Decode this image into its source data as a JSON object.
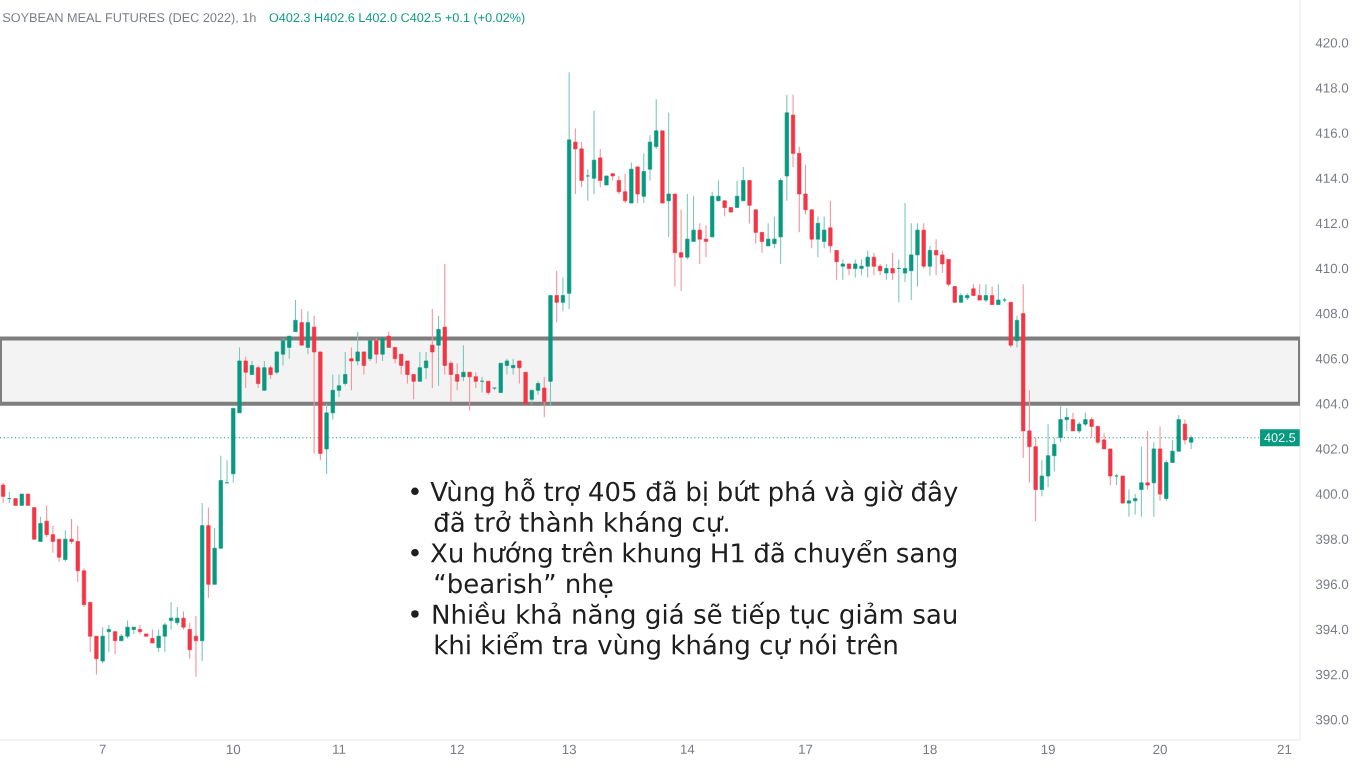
{
  "chart_data": {
    "type": "candlestick",
    "title": "SOYBEAN MEAL FUTURES (DEC 2022), 1h",
    "subtitle": "O402.3 H402.6 L402.0 C402.5 +0.1 (+0.02%)",
    "annotations": [
      "• Vùng hỗ trợ 405 đã bị bứt phá và giờ đây đã trở thành kháng cự.",
      "• Xu hướng trên khung H1 đã chuyển sang “bearish” nhẹ",
      "• Nhiều khả năng giá sẽ tiếp tục giảm sau khi kiểm tra vùng kháng cự nói trên"
    ],
    "categories": [
      null,
      null,
      null,
      null,
      null,
      null,
      null,
      null,
      null,
      null,
      null,
      null,
      null,
      null,
      null,
      null,
      "7",
      null,
      null,
      null,
      null,
      null,
      null,
      null,
      null,
      null,
      null,
      null,
      null,
      null,
      null,
      null,
      null,
      null,
      null,
      null,
      null,
      "10",
      null,
      null,
      null,
      null,
      null,
      null,
      null,
      null,
      null,
      null,
      null,
      null,
      null,
      null,
      null,
      null,
      "11",
      null,
      null,
      null,
      null,
      null,
      null,
      null,
      null,
      null,
      null,
      null,
      null,
      null,
      null,
      null,
      null,
      null,
      null,
      "12",
      null,
      null,
      null,
      null,
      null,
      null,
      null,
      null,
      null,
      null,
      null,
      null,
      null,
      null,
      null,
      null,
      null,
      "13",
      null,
      null,
      null,
      null,
      null,
      null,
      null,
      null,
      null,
      null,
      null,
      null,
      null,
      null,
      null,
      null,
      null,
      null,
      "14",
      null,
      null,
      null,
      null,
      null,
      null,
      null,
      null,
      null,
      null,
      null,
      null,
      null,
      null,
      null,
      null,
      null,
      null,
      "17",
      null,
      null,
      null,
      null,
      null,
      null,
      null,
      null,
      null,
      null,
      null,
      null,
      null,
      null,
      null,
      null,
      null,
      null,
      null,
      "18",
      null,
      null,
      null,
      null,
      null,
      null,
      null,
      null,
      null,
      null,
      null,
      null,
      null,
      null,
      null,
      null,
      null,
      null,
      "19",
      null,
      null,
      null,
      null,
      null,
      null,
      null,
      null,
      null,
      null,
      null,
      null,
      null,
      null,
      null,
      null,
      null,
      "20",
      null,
      null,
      null,
      null,
      null,
      null,
      null,
      null,
      null,
      null,
      null,
      null,
      null,
      null,
      null,
      null,
      null,
      null,
      null,
      "21",
      null,
      null
    ],
    "ohlc": [
      [
        400.4,
        400.5,
        399.6,
        399.9
      ],
      [
        399.8,
        400.1,
        399.6,
        399.8
      ],
      [
        399.8,
        399.8,
        399.5,
        399.5
      ],
      [
        399.5,
        400.0,
        399.5,
        400.0
      ],
      [
        400.0,
        400.0,
        399.5,
        399.5
      ],
      [
        399.4,
        399.4,
        398.0,
        398.0
      ],
      [
        397.9,
        399.0,
        397.9,
        398.7
      ],
      [
        398.8,
        399.5,
        398.1,
        398.2
      ],
      [
        398.2,
        398.6,
        397.4,
        397.9
      ],
      [
        398.0,
        398.0,
        397.0,
        397.2
      ],
      [
        397.1,
        398.4,
        397.0,
        398.0
      ],
      [
        398.0,
        398.9,
        397.8,
        397.9
      ],
      [
        397.9,
        398.6,
        396.1,
        396.6
      ],
      [
        396.6,
        396.7,
        395.0,
        395.1
      ],
      [
        395.2,
        395.2,
        393.0,
        393.7
      ],
      [
        393.7,
        393.7,
        392.0,
        392.7
      ],
      [
        392.6,
        394.1,
        392.5,
        393.7
      ],
      [
        393.9,
        394.2,
        393.0,
        394.0
      ],
      [
        393.9,
        393.9,
        392.9,
        393.5
      ],
      [
        393.5,
        393.8,
        393.5,
        393.7
      ],
      [
        393.7,
        394.4,
        393.6,
        394.1
      ],
      [
        394.0,
        394.1,
        393.8,
        394.1
      ],
      [
        394.0,
        394.2,
        393.8,
        393.9
      ],
      [
        393.8,
        393.8,
        393.7,
        393.7
      ],
      [
        393.6,
        394.0,
        393.4,
        393.4
      ],
      [
        393.2,
        394.0,
        393.0,
        393.7
      ],
      [
        393.7,
        394.3,
        393.0,
        394.2
      ],
      [
        394.4,
        395.2,
        394.0,
        394.5
      ],
      [
        394.3,
        395.0,
        394.2,
        394.5
      ],
      [
        394.5,
        394.8,
        394.0,
        394.1
      ],
      [
        394.0,
        394.3,
        392.7,
        393.1
      ],
      [
        393.7,
        394.6,
        391.9,
        393.5
      ],
      [
        393.5,
        399.6,
        392.6,
        398.6
      ],
      [
        398.6,
        399.4,
        395.4,
        396.0
      ],
      [
        396.0,
        398.5,
        396.0,
        397.6
      ],
      [
        397.6,
        401.7,
        397.6,
        400.6
      ],
      [
        400.5,
        401.5,
        400.5,
        400.5
      ],
      [
        400.9,
        403.8,
        400.5,
        403.8
      ],
      [
        403.6,
        406.5,
        403.6,
        405.9
      ],
      [
        405.9,
        406.1,
        404.7,
        405.4
      ],
      [
        405.3,
        405.9,
        405.3,
        405.7
      ],
      [
        405.6,
        405.7,
        404.7,
        404.9
      ],
      [
        404.6,
        405.9,
        404.6,
        405.6
      ],
      [
        405.6,
        405.7,
        405.1,
        405.3
      ],
      [
        405.4,
        406.3,
        405.3,
        406.3
      ],
      [
        406.2,
        406.9,
        405.7,
        406.8
      ],
      [
        406.5,
        407.0,
        406.0,
        407.0
      ],
      [
        407.2,
        408.6,
        407.2,
        407.7
      ],
      [
        407.6,
        408.2,
        406.6,
        406.6
      ],
      [
        406.5,
        408.1,
        406.2,
        407.6
      ],
      [
        407.4,
        407.9,
        401.8,
        406.3
      ],
      [
        406.3,
        406.3,
        401.5,
        401.8
      ],
      [
        402.0,
        404.0,
        400.9,
        403.6
      ],
      [
        403.6,
        405.3,
        403.3,
        404.6
      ],
      [
        404.6,
        405.3,
        404.3,
        404.8
      ],
      [
        404.9,
        406.3,
        404.8,
        405.3
      ],
      [
        406.0,
        406.5,
        404.6,
        405.9
      ],
      [
        405.9,
        407.2,
        405.7,
        406.3
      ],
      [
        406.3,
        406.3,
        405.3,
        405.7
      ],
      [
        406.0,
        406.8,
        405.9,
        406.8
      ],
      [
        406.8,
        406.9,
        405.8,
        406.2
      ],
      [
        406.2,
        406.9,
        405.9,
        406.9
      ],
      [
        407.0,
        407.2,
        406.5,
        406.5
      ],
      [
        406.5,
        406.5,
        405.8,
        406.0
      ],
      [
        406.2,
        406.2,
        405.3,
        405.7
      ],
      [
        405.9,
        405.9,
        404.9,
        405.3
      ],
      [
        405.3,
        405.3,
        404.2,
        405.0
      ],
      [
        405.0,
        406.3,
        405.0,
        405.6
      ],
      [
        405.6,
        406.3,
        405.1,
        405.9
      ],
      [
        406.6,
        408.2,
        404.7,
        406.3
      ],
      [
        406.6,
        407.9,
        404.8,
        407.3
      ],
      [
        407.4,
        410.2,
        405.3,
        405.7
      ],
      [
        405.8,
        405.9,
        404.1,
        405.3
      ],
      [
        405.3,
        405.8,
        404.6,
        405.0
      ],
      [
        405.2,
        406.6,
        405.0,
        405.4
      ],
      [
        405.4,
        405.4,
        403.7,
        405.2
      ],
      [
        405.2,
        405.4,
        404.7,
        405.0
      ],
      [
        405.0,
        405.2,
        404.5,
        405.0
      ],
      [
        405.0,
        405.0,
        404.4,
        404.5
      ],
      [
        404.7,
        404.7,
        404.6,
        404.7
      ],
      [
        404.5,
        405.8,
        404.5,
        405.8
      ],
      [
        405.7,
        406.0,
        405.3,
        405.9
      ],
      [
        405.6,
        406.0,
        405.3,
        405.7
      ],
      [
        405.9,
        405.9,
        404.9,
        405.6
      ],
      [
        405.4,
        405.4,
        404.0,
        404.0
      ],
      [
        404.2,
        404.6,
        404.0,
        404.6
      ],
      [
        404.6,
        405.0,
        404.4,
        404.9
      ],
      [
        404.7,
        405.2,
        403.4,
        404.1
      ],
      [
        405.0,
        408.8,
        403.9,
        408.8
      ],
      [
        408.8,
        409.9,
        407.6,
        408.5
      ],
      [
        408.5,
        409.6,
        408.1,
        408.8
      ],
      [
        408.9,
        418.7,
        408.2,
        415.7
      ],
      [
        415.6,
        416.2,
        413.3,
        415.3
      ],
      [
        415.3,
        415.6,
        413.6,
        413.9
      ],
      [
        414.1,
        414.4,
        413.0,
        414.1
      ],
      [
        414.0,
        417.0,
        413.3,
        414.8
      ],
      [
        414.9,
        415.3,
        413.6,
        413.9
      ],
      [
        413.7,
        414.1,
        413.7,
        414.1
      ],
      [
        414.2,
        414.2,
        413.9,
        414.1
      ],
      [
        413.9,
        414.1,
        413.3,
        413.4
      ],
      [
        413.4,
        414.2,
        412.9,
        413.0
      ],
      [
        412.9,
        414.7,
        412.9,
        414.4
      ],
      [
        414.5,
        414.5,
        412.9,
        413.3
      ],
      [
        413.2,
        415.1,
        412.9,
        414.3
      ],
      [
        414.4,
        415.9,
        413.9,
        415.6
      ],
      [
        415.4,
        417.5,
        415.3,
        416.1
      ],
      [
        416.1,
        416.1,
        412.9,
        412.9
      ],
      [
        413.0,
        416.9,
        411.4,
        413.3
      ],
      [
        413.3,
        413.3,
        409.2,
        410.7
      ],
      [
        410.7,
        412.6,
        409.0,
        410.5
      ],
      [
        410.5,
        413.3,
        410.4,
        411.3
      ],
      [
        411.2,
        413.2,
        411.2,
        411.7
      ],
      [
        411.7,
        412.0,
        410.2,
        411.3
      ],
      [
        411.3,
        411.9,
        410.5,
        411.2
      ],
      [
        411.4,
        413.4,
        411.4,
        413.2
      ],
      [
        413.0,
        413.9,
        413.0,
        413.2
      ],
      [
        413.0,
        413.0,
        412.3,
        412.7
      ],
      [
        412.7,
        412.7,
        412.5,
        412.5
      ],
      [
        412.7,
        413.9,
        412.7,
        413.2
      ],
      [
        413.0,
        414.5,
        413.0,
        413.9
      ],
      [
        413.9,
        413.9,
        412.0,
        412.8
      ],
      [
        412.6,
        412.6,
        411.1,
        411.6
      ],
      [
        411.6,
        411.6,
        410.7,
        411.2
      ],
      [
        411.0,
        412.0,
        411.0,
        411.3
      ],
      [
        411.1,
        412.3,
        410.9,
        411.3
      ],
      [
        411.4,
        414.0,
        410.2,
        413.9
      ],
      [
        414.1,
        417.7,
        413.0,
        416.9
      ],
      [
        416.8,
        417.7,
        414.5,
        415.1
      ],
      [
        415.1,
        415.4,
        411.6,
        413.3
      ],
      [
        413.3,
        414.6,
        412.4,
        412.6
      ],
      [
        412.6,
        412.6,
        410.9,
        411.3
      ],
      [
        411.3,
        412.3,
        410.5,
        412.0
      ],
      [
        411.2,
        412.3,
        410.9,
        411.7
      ],
      [
        411.8,
        413.0,
        410.7,
        411.0
      ],
      [
        410.8,
        410.8,
        409.5,
        410.3
      ],
      [
        410.1,
        410.4,
        409.5,
        410.2
      ],
      [
        410.2,
        410.2,
        409.7,
        410.0
      ],
      [
        410.0,
        410.4,
        409.6,
        410.2
      ],
      [
        410.0,
        410.4,
        409.7,
        410.1
      ],
      [
        410.1,
        410.8,
        409.6,
        410.5
      ],
      [
        410.5,
        410.7,
        409.7,
        410.1
      ],
      [
        410.1,
        410.2,
        409.7,
        409.9
      ],
      [
        409.8,
        410.2,
        409.5,
        410.0
      ],
      [
        410.0,
        410.7,
        409.5,
        409.8
      ],
      [
        410.0,
        410.4,
        408.5,
        410.0
      ],
      [
        409.8,
        412.9,
        409.4,
        410.0
      ],
      [
        409.9,
        412.0,
        408.6,
        410.6
      ],
      [
        410.6,
        412.0,
        409.2,
        411.7
      ],
      [
        411.7,
        412.0,
        410.0,
        410.1
      ],
      [
        410.1,
        411.0,
        409.7,
        410.8
      ],
      [
        410.8,
        411.3,
        409.7,
        410.6
      ],
      [
        410.6,
        410.8,
        409.8,
        410.2
      ],
      [
        410.4,
        410.4,
        409.2,
        409.3
      ],
      [
        409.2,
        409.2,
        408.5,
        408.5
      ],
      [
        408.5,
        408.9,
        408.5,
        408.8
      ],
      [
        408.7,
        408.9,
        408.6,
        408.8
      ],
      [
        409.1,
        409.3,
        408.8,
        408.8
      ],
      [
        408.8,
        409.3,
        408.6,
        408.6
      ],
      [
        408.6,
        409.3,
        408.5,
        408.8
      ],
      [
        408.8,
        409.2,
        408.4,
        408.4
      ],
      [
        408.4,
        409.3,
        408.4,
        408.6
      ],
      [
        408.6,
        408.7,
        408.5,
        408.6
      ],
      [
        408.5,
        408.5,
        406.5,
        406.6
      ],
      [
        406.8,
        407.9,
        406.5,
        407.7
      ],
      [
        408.0,
        409.3,
        401.6,
        402.8
      ],
      [
        402.8,
        404.6,
        400.5,
        402.1
      ],
      [
        402.1,
        402.5,
        398.8,
        400.2
      ],
      [
        400.2,
        401.5,
        399.9,
        400.8
      ],
      [
        400.8,
        403.1,
        400.3,
        401.7
      ],
      [
        401.7,
        402.5,
        401.0,
        402.2
      ],
      [
        402.5,
        403.9,
        402.3,
        403.3
      ],
      [
        403.3,
        403.8,
        402.8,
        403.4
      ],
      [
        403.3,
        403.6,
        402.8,
        402.8
      ],
      [
        402.8,
        403.2,
        402.7,
        403.1
      ],
      [
        403.1,
        403.6,
        403.0,
        403.3
      ],
      [
        403.3,
        403.4,
        402.5,
        403.0
      ],
      [
        403.0,
        403.0,
        402.2,
        402.3
      ],
      [
        402.4,
        402.7,
        402.0,
        402.0
      ],
      [
        402.0,
        402.0,
        400.4,
        400.8
      ],
      [
        400.8,
        400.9,
        400.4,
        400.8
      ],
      [
        400.8,
        400.8,
        399.6,
        399.6
      ],
      [
        399.6,
        400.2,
        399.0,
        399.7
      ],
      [
        399.7,
        400.0,
        399.1,
        399.8
      ],
      [
        400.2,
        402.1,
        399.0,
        400.5
      ],
      [
        400.5,
        402.8,
        400.2,
        400.4
      ],
      [
        400.5,
        402.3,
        399.0,
        402.0
      ],
      [
        402.0,
        403.0,
        399.7,
        400.0
      ],
      [
        399.8,
        401.5,
        399.7,
        401.4
      ],
      [
        401.4,
        402.4,
        401.4,
        401.9
      ],
      [
        401.9,
        403.5,
        401.9,
        403.3
      ],
      [
        403.1,
        403.3,
        402.2,
        402.4
      ],
      [
        402.3,
        402.6,
        402.0,
        402.5
      ],
      null,
      null,
      null,
      null,
      null,
      null,
      null,
      null,
      null,
      null,
      null,
      null,
      null,
      null,
      null,
      null,
      null
    ],
    "colors": [
      "#f23645",
      "#089981",
      "#f23645",
      "#089981",
      "#f23645",
      "#f23645",
      "#089981",
      "#f23645",
      "#f23645",
      "#f23645",
      "#089981",
      "#f23645",
      "#f23645",
      "#f23645",
      "#f23645",
      "#f23645",
      "#089981",
      "#089981",
      "#f23645",
      "#089981",
      "#089981",
      "#089981",
      "#f23645",
      "#f23645",
      "#f23645",
      "#089981",
      "#089981",
      "#089981",
      "#089981",
      "#f23645",
      "#f23645",
      "#f23645",
      "#089981",
      "#f23645",
      "#089981",
      "#089981",
      "#089981",
      "#089981",
      "#089981",
      "#f23645",
      "#089981",
      "#f23645",
      "#089981",
      "#f23645",
      "#089981",
      "#089981",
      "#089981",
      "#089981",
      "#f23645",
      "#089981",
      "#f23645",
      "#f23645",
      "#089981",
      "#089981",
      "#089981",
      "#089981",
      "#f23645",
      "#089981",
      "#f23645",
      "#089981",
      "#f23645",
      "#089981",
      "#f23645",
      "#f23645",
      "#f23645",
      "#f23645",
      "#f23645",
      "#089981",
      "#089981",
      "#f23645",
      "#089981",
      "#f23645",
      "#f23645",
      "#f23645",
      "#089981",
      "#f23645",
      "#f23645",
      "#089981",
      "#f23645",
      "#089981",
      "#089981",
      "#089981",
      "#089981",
      "#f23645",
      "#f23645",
      "#089981",
      "#089981",
      "#f23645",
      "#089981",
      "#f23645",
      "#089981",
      "#089981",
      "#f23645",
      "#f23645",
      "#089981",
      "#089981",
      "#f23645",
      "#089981",
      "#f23645",
      "#f23645",
      "#f23645",
      "#089981",
      "#f23645",
      "#089981",
      "#089981",
      "#089981",
      "#f23645",
      "#089981",
      "#f23645",
      "#f23645",
      "#089981",
      "#089981",
      "#f23645",
      "#f23645",
      "#089981",
      "#089981",
      "#f23645",
      "#f23645",
      "#089981",
      "#089981",
      "#f23645",
      "#f23645",
      "#f23645",
      "#089981",
      "#089981",
      "#089981",
      "#089981",
      "#f23645",
      "#f23645",
      "#f23645",
      "#f23645",
      "#089981",
      "#089981",
      "#f23645",
      "#f23645",
      "#089981",
      "#f23645",
      "#089981",
      "#089981",
      "#089981",
      "#f23645",
      "#f23645",
      "#089981",
      "#f23645",
      "#089981",
      "#089981",
      "#089981",
      "#089981",
      "#f23645",
      "#089981",
      "#f23645",
      "#f23645",
      "#f23645",
      "#f23645",
      "#089981",
      "#089981",
      "#f23645",
      "#f23645",
      "#089981",
      "#f23645",
      "#089981",
      "#089981",
      "#f23645",
      "#089981",
      "#f23645",
      "#f23645",
      "#f23645",
      "#089981",
      "#089981",
      "#089981",
      "#089981",
      "#089981",
      "#f23645",
      "#089981",
      "#089981",
      "#f23645",
      "#f23645",
      "#f23645",
      "#f23645",
      "#089981",
      "#f23645",
      "#089981",
      "#089981",
      "#089981",
      "#f23645",
      "#089981",
      "#f23645",
      "#089981",
      "#089981",
      "#089981",
      "#f23645",
      "#089981",
      null,
      null,
      null,
      null,
      null,
      null,
      null,
      null,
      null,
      null,
      null,
      null,
      null,
      null,
      null,
      null,
      null
    ],
    "ylim": [
      389.1,
      421.9
    ],
    "yticks": [
      {
        "value": 390,
        "label": "390.0"
      },
      {
        "value": 392,
        "label": "392.0"
      },
      {
        "value": 394,
        "label": "394.0"
      },
      {
        "value": 396,
        "label": "396.0"
      },
      {
        "value": 398,
        "label": "398.0"
      },
      {
        "value": 400,
        "label": "400.0"
      },
      {
        "value": 402,
        "label": "402.0"
      },
      {
        "value": 404,
        "label": "404.0"
      },
      {
        "value": 406,
        "label": "406.0"
      },
      {
        "value": 408,
        "label": "408.0"
      },
      {
        "value": 410,
        "label": "410.0"
      },
      {
        "value": 412,
        "label": "412.0"
      },
      {
        "value": 414,
        "label": "414.0"
      },
      {
        "value": 416,
        "label": "416.0"
      },
      {
        "value": 418,
        "label": "418.0"
      },
      {
        "value": 420,
        "label": "420.0"
      }
    ],
    "ref_lines": [
      {
        "axis": "y",
        "value": 402.5,
        "label": "402.5",
        "color": "#089981",
        "line_style": "dotted"
      }
    ],
    "bands": [
      {
        "axis": "y",
        "from": 404.0,
        "to": 406.9,
        "color": "#f3f3f3"
      }
    ]
  }
}
